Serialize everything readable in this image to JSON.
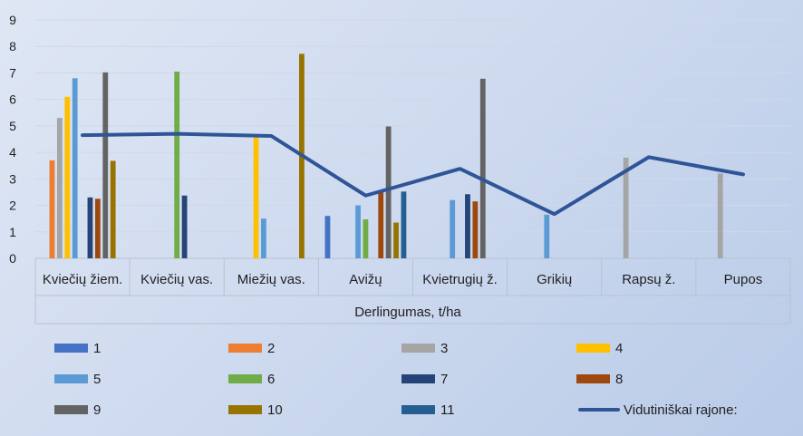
{
  "chart_data": {
    "type": "bar",
    "xlabel": "Derlingumas, t/ha",
    "ylim": [
      0,
      9
    ],
    "yticks": [
      0,
      1,
      2,
      3,
      4,
      5,
      6,
      7,
      8,
      9
    ],
    "grid": true,
    "legend_position": "bottom",
    "categories": [
      "Kviečių žiem.",
      "Kviečių vas.",
      "Miežių vas.",
      "Avižų",
      "Kvietrugių ž.",
      "Grikių",
      "Rapsų ž.",
      "Pupos"
    ],
    "series": [
      {
        "name": "1",
        "color": "#4472c4",
        "values": [
          null,
          null,
          null,
          1.6,
          null,
          null,
          null,
          null
        ]
      },
      {
        "name": "2",
        "color": "#ed7d31",
        "values": [
          3.7,
          null,
          null,
          null,
          null,
          null,
          null,
          null
        ]
      },
      {
        "name": "3",
        "color": "#a5a5a5",
        "values": [
          5.3,
          null,
          null,
          null,
          null,
          null,
          3.8,
          3.2
        ]
      },
      {
        "name": "4",
        "color": "#ffc000",
        "values": [
          6.1,
          null,
          4.6,
          null,
          null,
          null,
          null,
          null
        ]
      },
      {
        "name": "5",
        "color": "#5b9bd5",
        "values": [
          6.8,
          null,
          1.5,
          2.0,
          2.2,
          1.65,
          null,
          null
        ]
      },
      {
        "name": "6",
        "color": "#70ad47",
        "values": [
          null,
          7.05,
          null,
          1.47,
          null,
          null,
          null,
          null
        ]
      },
      {
        "name": "7",
        "color": "#264478",
        "values": [
          2.3,
          2.37,
          null,
          null,
          2.42,
          null,
          null,
          null
        ]
      },
      {
        "name": "8",
        "color": "#9e480e",
        "values": [
          2.25,
          null,
          null,
          2.55,
          2.15,
          null,
          null,
          null
        ]
      },
      {
        "name": "9",
        "color": "#636363",
        "values": [
          7.02,
          null,
          null,
          4.98,
          6.78,
          null,
          null,
          null
        ]
      },
      {
        "name": "10",
        "color": "#997300",
        "values": [
          3.68,
          null,
          7.72,
          1.35,
          null,
          null,
          null,
          null
        ]
      },
      {
        "name": "11",
        "color": "#255e91",
        "values": [
          null,
          null,
          null,
          2.52,
          null,
          null,
          null,
          null
        ]
      }
    ],
    "line_series": {
      "name": "Vidutiniškai rajone:",
      "color": "#2f5597",
      "values": [
        4.65,
        4.7,
        4.62,
        2.37,
        3.38,
        1.67,
        3.82,
        3.17
      ]
    }
  }
}
